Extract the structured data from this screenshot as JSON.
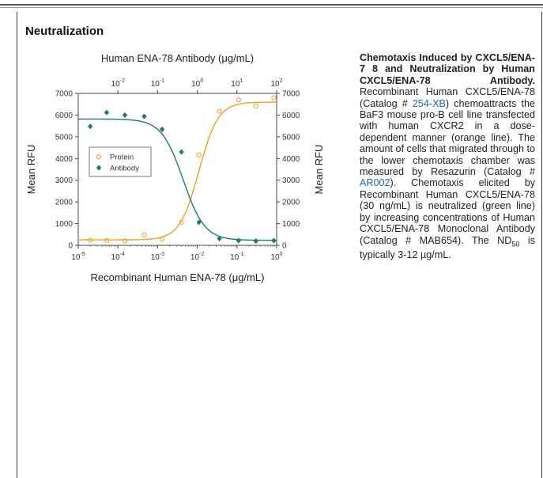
{
  "section": {
    "title": "Neutralization"
  },
  "chart_data": {
    "type": "scatter",
    "title": "Human ENA-78 Antibody (μg/mL)",
    "xlabel": "Recombinant Human ENA-78 (μg/mL)",
    "ylabel": "Mean RFU",
    "x_scale": "log",
    "xlim": [
      1e-05,
      1
    ],
    "x_ticks": [
      "10-5",
      "10-4",
      "10-3",
      "10-2",
      "10-1",
      "100"
    ],
    "top_axis": {
      "scale": "log",
      "xlim": [
        0.001,
        100
      ],
      "ticks": [
        "10-2",
        "10-1",
        "100",
        "101",
        "102"
      ]
    },
    "ylim": [
      0,
      7000
    ],
    "y_ticks": [
      0,
      1000,
      2000,
      3000,
      4000,
      5000,
      6000,
      7000
    ],
    "legend_position": "center-left",
    "series": [
      {
        "name": "Protein",
        "marker": "open-circle",
        "color": "#e9a320",
        "x": [
          2e-05,
          5.2e-05,
          0.00015,
          0.00046,
          0.0013,
          0.004,
          0.011,
          0.036,
          0.11,
          0.3,
          0.85
        ],
        "y": [
          240,
          230,
          200,
          480,
          280,
          1060,
          4170,
          6180,
          6700,
          6420,
          6800
        ]
      },
      {
        "name": "Antibody",
        "marker": "filled-diamond",
        "color": "#1e7b72",
        "x": [
          2e-05,
          5.2e-05,
          0.00015,
          0.00046,
          0.0013,
          0.004,
          0.011,
          0.036,
          0.11,
          0.3,
          0.85
        ],
        "y": [
          5480,
          6120,
          6000,
          5940,
          5340,
          4300,
          1060,
          310,
          220,
          200,
          220
        ]
      }
    ],
    "fit_curves": [
      {
        "series": "Protein",
        "bottom": 250,
        "top": 6600,
        "ec50": 0.011,
        "hill": 1.8
      },
      {
        "series": "Antibody",
        "bottom": 230,
        "top": 5820,
        "ec50": 0.0044,
        "hill": 1.6
      }
    ]
  },
  "caption": {
    "title": "Chemotaxis Induced by CXCL5/ENA-7 8 and Neutralization by Human CXCL5/ENA-78 Antibody.",
    "t1": " Recombinant Human CXCL5/ENA-78 (Catalog # ",
    "link1": "254-XB",
    "t2": ") chemoattracts the BaF3 mouse pro-B cell line transfected with human CXCR2 in a dose-dependent manner (orange line). The amount of cells that migrated through to the lower chemotaxis chamber was measured by Resazurin (Catalog # ",
    "link2": "AR002",
    "t3": "). Chemotaxis elicited by Recombinant Human CXCL5/ENA-78 (30 ng/mL) is neutralized (green line) by increasing concentrations of Human CXCL5/ENA-78 Monoclonal Antibody (Catalog # MAB654). The ND",
    "sub": "50",
    "t4": " is typically 3-12 µg/mL."
  },
  "colors": {
    "protein": "#e9a320",
    "antibody": "#1e7b72",
    "link": "#1f67b1"
  }
}
